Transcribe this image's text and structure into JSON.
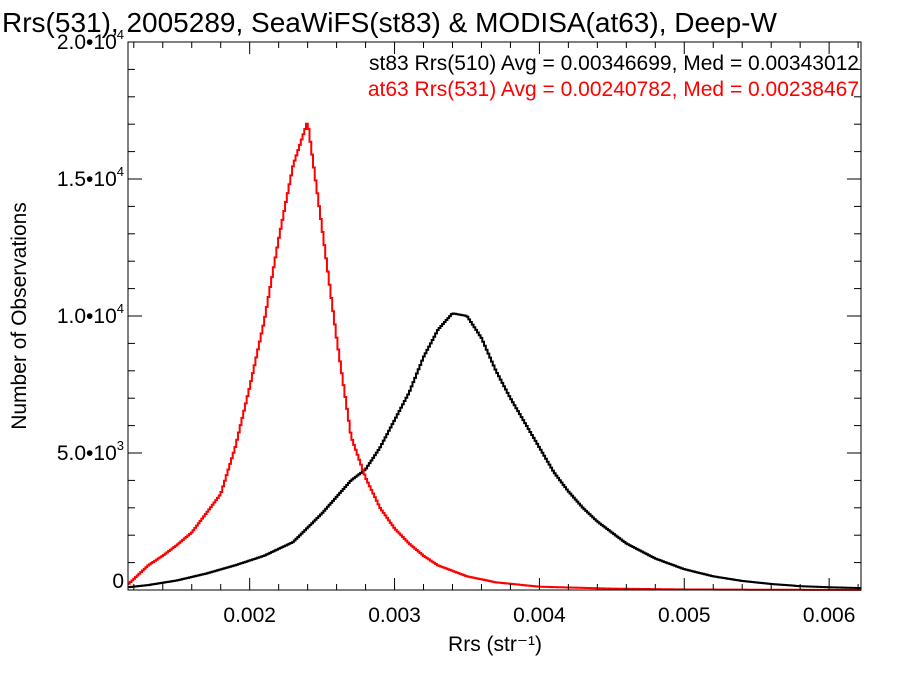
{
  "chart_data": {
    "type": "line",
    "title": "Rrs(531), 2005289, SeaWiFS(st83) & MODISA(at63), Deep-W",
    "xlabel": "Rrs (str⁻¹)",
    "ylabel": "Number of Observations",
    "xlim": [
      0.00116,
      0.00622
    ],
    "ylim": [
      0,
      20000
    ],
    "xticks": [
      0.002,
      0.003,
      0.004,
      0.005,
      0.006
    ],
    "xtick_labels": [
      "0.002",
      "0.003",
      "0.004",
      "0.005",
      "0.006"
    ],
    "yticks": [
      0,
      5000,
      10000,
      15000,
      20000
    ],
    "ytick_labels": [
      {
        "mantissa": "0",
        "exponent": ""
      },
      {
        "mantissa": "5.0•10",
        "exponent": "3"
      },
      {
        "mantissa": "1.0•10",
        "exponent": "4"
      },
      {
        "mantissa": "1.5•10",
        "exponent": "4"
      },
      {
        "mantissa": "2.0•10",
        "exponent": "4"
      }
    ],
    "grid": false,
    "legend_position": "top-right",
    "annotations": [
      {
        "text": "st83 Rrs(510) Avg = 0.00346699, Med = 0.00343012",
        "color": "#000000"
      },
      {
        "text": "at63 Rrs(531) Avg = 0.00240782, Med = 0.00238467",
        "color": "#ff0000"
      }
    ],
    "series": [
      {
        "color": "#000000",
        "x": [
          0.00116,
          0.0013,
          0.0015,
          0.0017,
          0.0019,
          0.0021,
          0.0023,
          0.0025,
          0.0027,
          0.0028,
          0.0029,
          0.003,
          0.0031,
          0.0032,
          0.0033,
          0.0034,
          0.0035,
          0.0036,
          0.0037,
          0.0038,
          0.0039,
          0.004,
          0.0041,
          0.0042,
          0.0043,
          0.0044,
          0.0046,
          0.0048,
          0.005,
          0.0052,
          0.0054,
          0.0056,
          0.0058,
          0.006,
          0.00622
        ],
        "y": [
          100,
          180,
          350,
          600,
          900,
          1250,
          1750,
          2800,
          4000,
          4400,
          5200,
          6200,
          7200,
          8500,
          9500,
          10100,
          10000,
          9200,
          8000,
          7000,
          6100,
          5200,
          4300,
          3600,
          3000,
          2500,
          1700,
          1150,
          760,
          500,
          330,
          220,
          140,
          100,
          70
        ]
      },
      {
        "color": "#ff0000",
        "x": [
          0.00116,
          0.0012,
          0.0013,
          0.0014,
          0.0015,
          0.0016,
          0.0017,
          0.0018,
          0.0019,
          0.002,
          0.0021,
          0.0022,
          0.0023,
          0.0024,
          0.0025,
          0.0026,
          0.0027,
          0.0028,
          0.0029,
          0.003,
          0.0031,
          0.0032,
          0.0033,
          0.0035,
          0.0037,
          0.004,
          0.0045,
          0.005,
          0.0055,
          0.006,
          0.00622
        ],
        "y": [
          200,
          400,
          900,
          1250,
          1650,
          2100,
          2800,
          3500,
          5200,
          7400,
          9800,
          12800,
          15500,
          17100,
          13200,
          9200,
          5600,
          4100,
          3000,
          2250,
          1700,
          1250,
          900,
          500,
          280,
          120,
          50,
          20,
          10,
          5,
          3
        ]
      }
    ]
  }
}
